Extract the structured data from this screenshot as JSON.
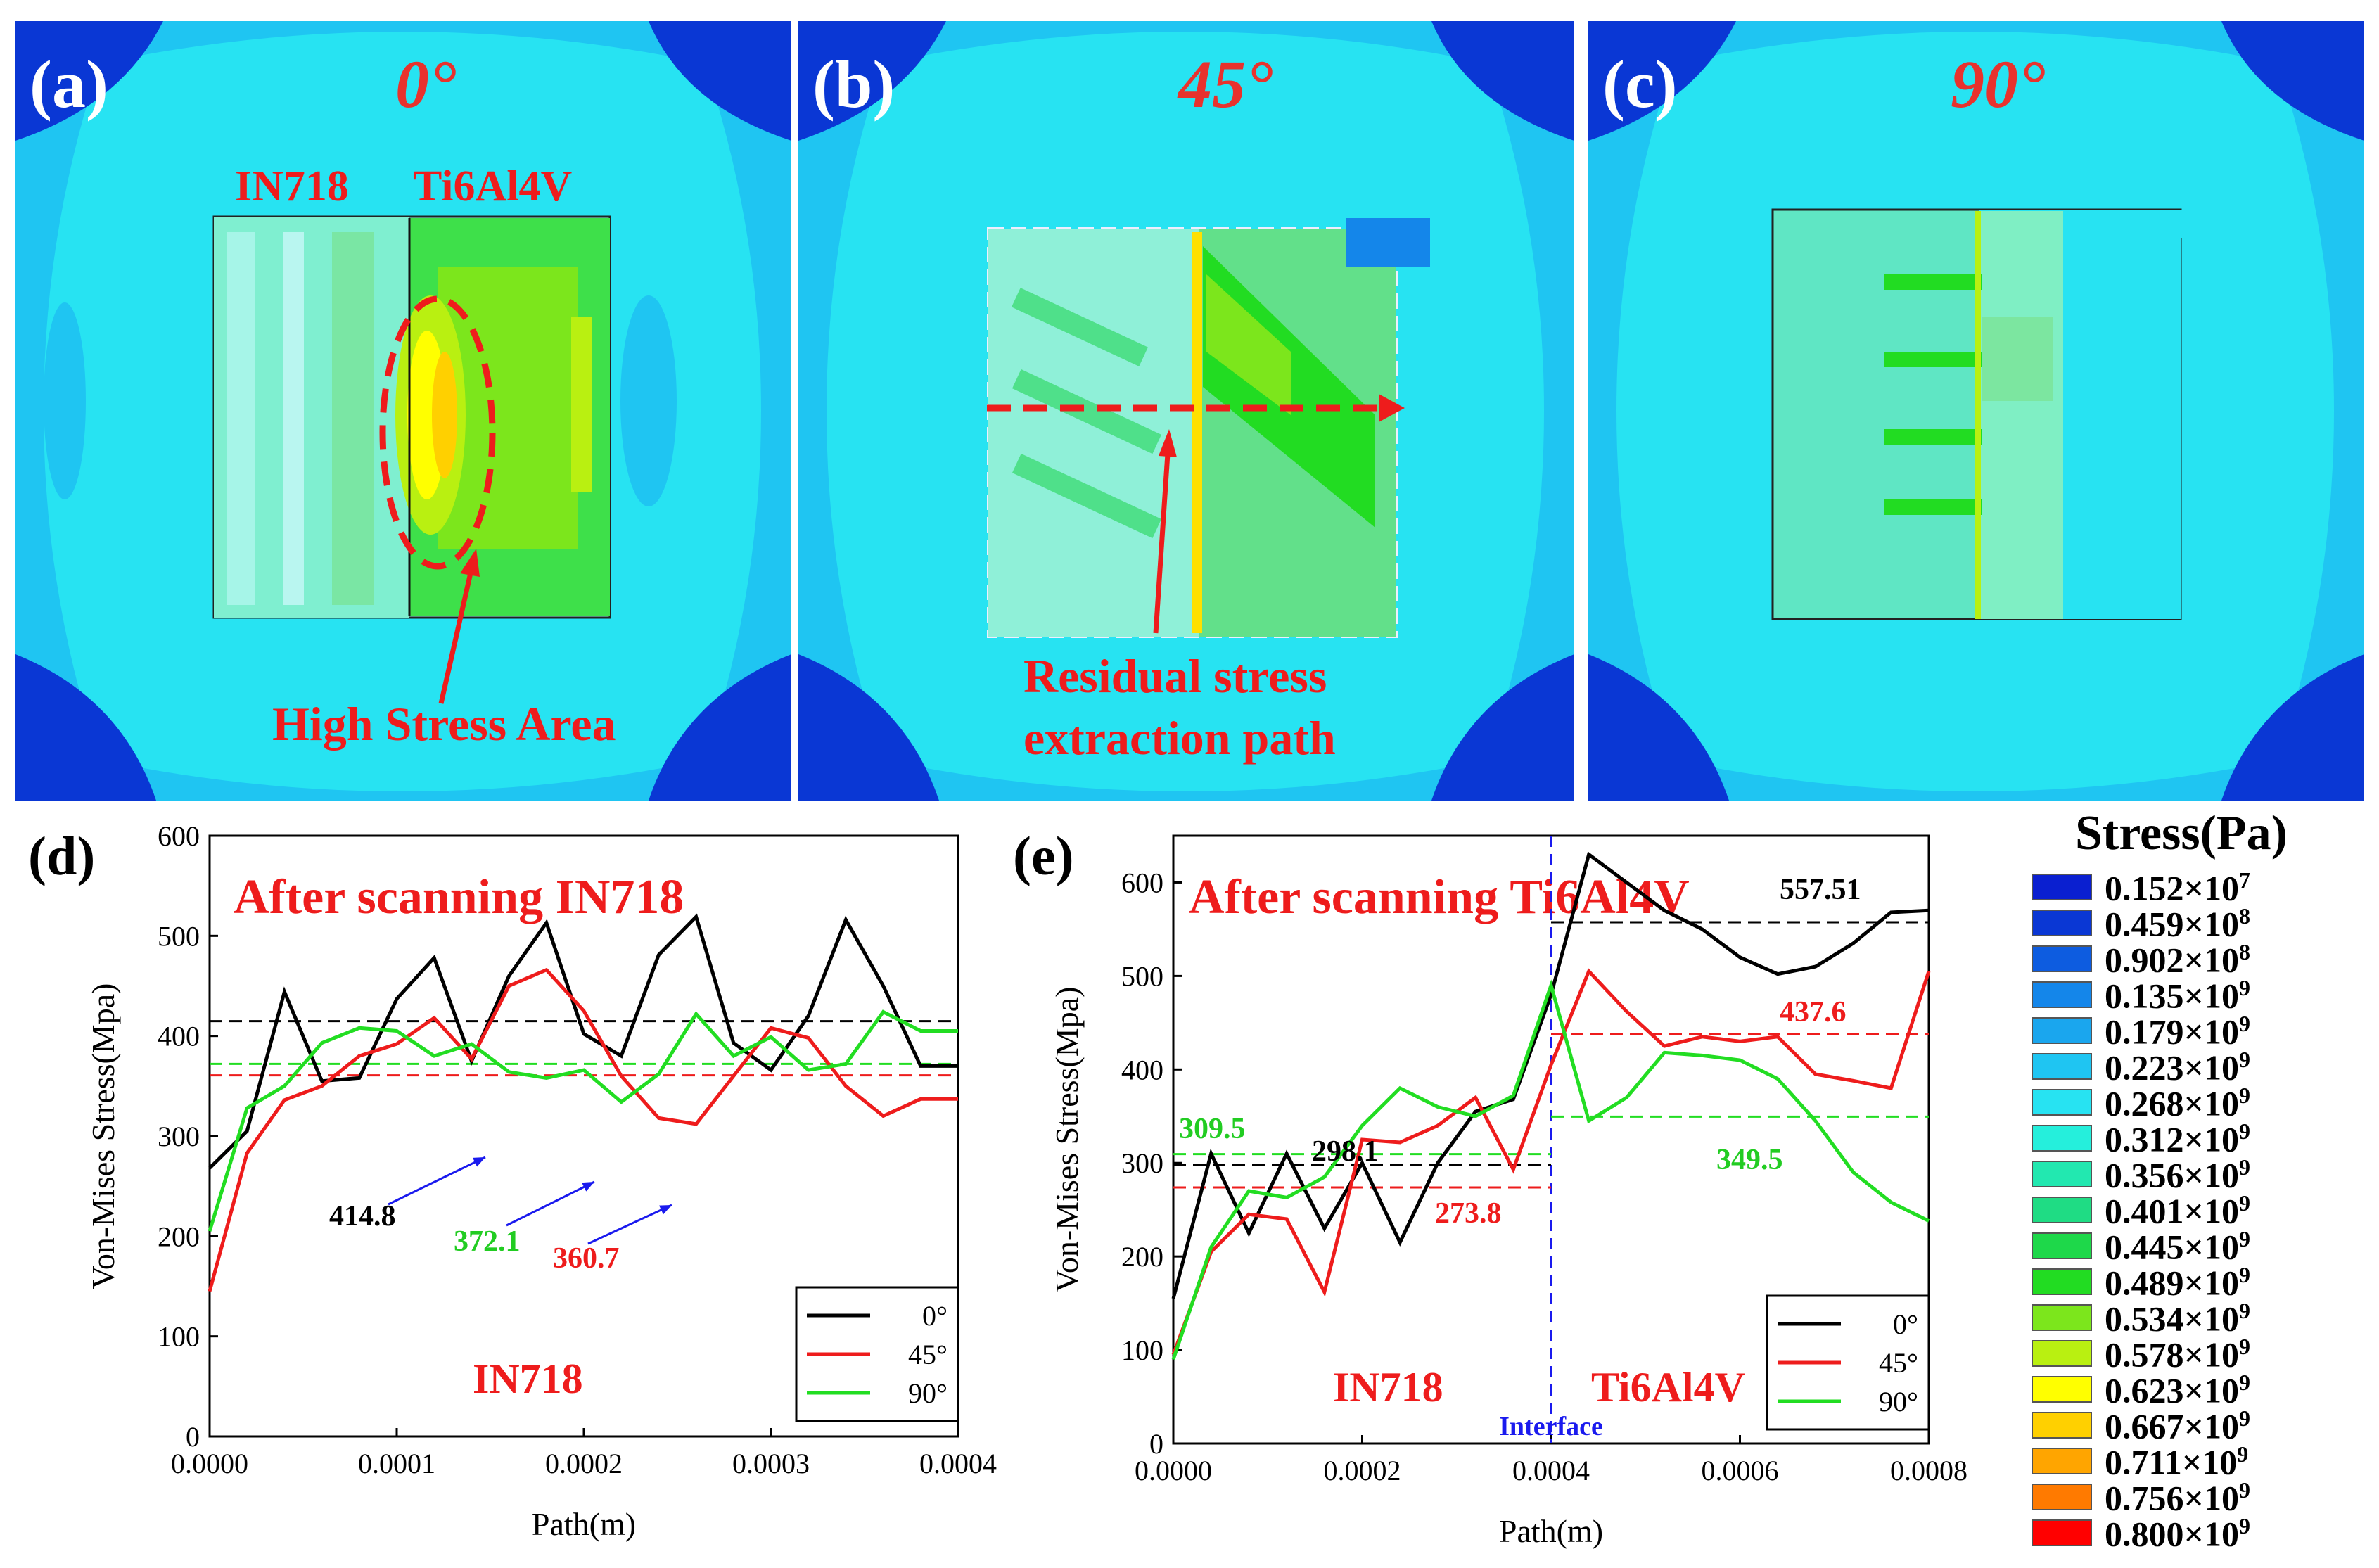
{
  "panels": [
    {
      "label": "(a)",
      "angle": "0°",
      "materials": [
        "IN718",
        "Ti6Al4V"
      ],
      "annotation": "High Stress Area"
    },
    {
      "label": "(b)",
      "angle": "45°",
      "annotation_line1": "Residual stress",
      "annotation_line2": "extraction path"
    },
    {
      "label": "(c)",
      "angle": "90°"
    }
  ],
  "colors": {
    "background_field": "#27e3f2",
    "corner_dark": "#0a37d4",
    "mid_blue": "#1aa6ee",
    "green": "#22dc22",
    "yellow": "#ffff00",
    "orange": "#ffa500",
    "red_text": "#ee1c1c"
  },
  "chart_data": [
    {
      "type": "line",
      "panel_label": "(d)",
      "title": "After scanning IN718",
      "xlabel": "Path(m)",
      "ylabel": "Von-Mises Stress(Mpa)",
      "xlim": [
        0,
        0.0004
      ],
      "ylim": [
        0,
        600
      ],
      "xticks": [
        "0.0000",
        "0.0001",
        "0.0002",
        "0.0003",
        "0.0004"
      ],
      "yticks": [
        "0",
        "100",
        "200",
        "300",
        "400",
        "500",
        "600"
      ],
      "region_label": "IN718",
      "legend_position": "bottom-right",
      "x": [
        0,
        2e-05,
        4e-05,
        6e-05,
        8e-05,
        0.0001,
        0.00012,
        0.00014,
        0.00016,
        0.00018,
        0.0002,
        0.00022,
        0.00024,
        0.00026,
        0.00028,
        0.0003,
        0.00032,
        0.00034,
        0.00036,
        0.00038,
        0.0004
      ],
      "series": [
        {
          "name": "0°",
          "color": "#000000",
          "values": [
            268,
            305,
            444,
            355,
            358,
            437,
            478,
            375,
            460,
            513,
            402,
            380,
            481,
            519,
            393,
            366,
            420,
            516,
            450,
            370,
            370
          ],
          "mean": 414.8,
          "mean_label": "414.8"
        },
        {
          "name": "45°",
          "color": "#ee1c1c",
          "values": [
            145,
            283,
            336,
            350,
            380,
            392,
            418,
            377,
            450,
            466,
            425,
            360,
            318,
            312,
            360,
            408,
            398,
            350,
            320,
            337,
            337
          ],
          "mean": 360.7,
          "mean_label": "360.7"
        },
        {
          "name": "90°",
          "color": "#22dd22",
          "values": [
            205,
            328,
            350,
            393,
            408,
            405,
            380,
            392,
            364,
            358,
            366,
            334,
            362,
            422,
            380,
            399,
            366,
            372,
            424,
            405,
            405
          ],
          "mean": 372.1,
          "mean_label": "372.1"
        }
      ]
    },
    {
      "type": "line",
      "panel_label": "(e)",
      "title": "After scanning Ti6Al4V",
      "xlabel": "Path(m)",
      "ylabel": "Von-Mises Stress(Mpa)",
      "xlim": [
        0,
        0.0008
      ],
      "ylim": [
        0,
        650
      ],
      "xticks": [
        "0.0000",
        "0.0002",
        "0.0004",
        "0.0006",
        "0.0008"
      ],
      "yticks": [
        "0",
        "100",
        "200",
        "300",
        "400",
        "500",
        "600"
      ],
      "left_region_label": "IN718",
      "right_region_label": "Ti6Al4V",
      "interface_label": "Interface",
      "interface_x": 0.0004,
      "legend_position": "bottom-right",
      "x": [
        0,
        4e-05,
        8e-05,
        0.00012,
        0.00016,
        0.0002,
        0.00024,
        0.00028,
        0.00032,
        0.00036,
        0.0004,
        0.00044,
        0.00048,
        0.00052,
        0.00056,
        0.0006,
        0.00064,
        0.00068,
        0.00072,
        0.00076,
        0.0008
      ],
      "series": [
        {
          "name": "0°",
          "color": "#000000",
          "values": [
            155,
            310,
            225,
            310,
            230,
            300,
            215,
            300,
            355,
            368,
            480,
            630,
            600,
            570,
            550,
            520,
            502,
            510,
            535,
            568,
            570
          ],
          "mean_segments": [
            {
              "x": [
                0,
                0.0004
              ],
              "y": 298.1,
              "label": "298.1"
            },
            {
              "x": [
                0.0004,
                0.0008
              ],
              "y": 557.51,
              "label": "557.51"
            }
          ]
        },
        {
          "name": "45°",
          "color": "#ee1c1c",
          "values": [
            95,
            205,
            245,
            240,
            162,
            325,
            322,
            340,
            370,
            293,
            405,
            505,
            462,
            425,
            435,
            430,
            435,
            395,
            388,
            380,
            505
          ],
          "mean_segments": [
            {
              "x": [
                0,
                0.0004
              ],
              "y": 273.8,
              "label": "273.8"
            },
            {
              "x": [
                0.0004,
                0.0008
              ],
              "y": 437.6,
              "label": "437.6"
            }
          ]
        },
        {
          "name": "90°",
          "color": "#22dd22",
          "values": [
            90,
            210,
            270,
            263,
            285,
            340,
            380,
            360,
            350,
            372,
            490,
            345,
            370,
            418,
            415,
            410,
            390,
            345,
            290,
            258,
            238
          ],
          "mean_segments": [
            {
              "x": [
                0,
                0.0004
              ],
              "y": 309.5,
              "label": "309.5"
            },
            {
              "x": [
                0.0004,
                0.0008
              ],
              "y": 349.5,
              "label": "349.5"
            }
          ]
        }
      ]
    }
  ],
  "legend": {
    "title": "Stress(Pa)",
    "entries": [
      {
        "mantissa": "0.152×10",
        "exp": "7",
        "color": "#0a1fd0"
      },
      {
        "mantissa": "0.459×10",
        "exp": "8",
        "color": "#0a37d4"
      },
      {
        "mantissa": "0.902×10",
        "exp": "8",
        "color": "#0d5ce0"
      },
      {
        "mantissa": "0.135×10",
        "exp": "9",
        "color": "#1486ea"
      },
      {
        "mantissa": "0.179×10",
        "exp": "9",
        "color": "#1aa6ee"
      },
      {
        "mantissa": "0.223×10",
        "exp": "9",
        "color": "#1fc5f2"
      },
      {
        "mantissa": "0.268×10",
        "exp": "9",
        "color": "#27e3f2"
      },
      {
        "mantissa": "0.312×10",
        "exp": "9",
        "color": "#25efdc"
      },
      {
        "mantissa": "0.356×10",
        "exp": "9",
        "color": "#22e8b0"
      },
      {
        "mantissa": "0.401×10",
        "exp": "9",
        "color": "#1fdc84"
      },
      {
        "mantissa": "0.445×10",
        "exp": "9",
        "color": "#1ed84a"
      },
      {
        "mantissa": "0.489×10",
        "exp": "9",
        "color": "#22dc22"
      },
      {
        "mantissa": "0.534×10",
        "exp": "9",
        "color": "#7ce61c"
      },
      {
        "mantissa": "0.578×10",
        "exp": "9",
        "color": "#b9f011"
      },
      {
        "mantissa": "0.623×10",
        "exp": "9",
        "color": "#ffff00"
      },
      {
        "mantissa": "0.667×10",
        "exp": "9",
        "color": "#ffd000"
      },
      {
        "mantissa": "0.711×10",
        "exp": "9",
        "color": "#ffa500"
      },
      {
        "mantissa": "0.756×10",
        "exp": "9",
        "color": "#ff7a00"
      },
      {
        "mantissa": "0.800×10",
        "exp": "9",
        "color": "#ff0000"
      }
    ]
  }
}
